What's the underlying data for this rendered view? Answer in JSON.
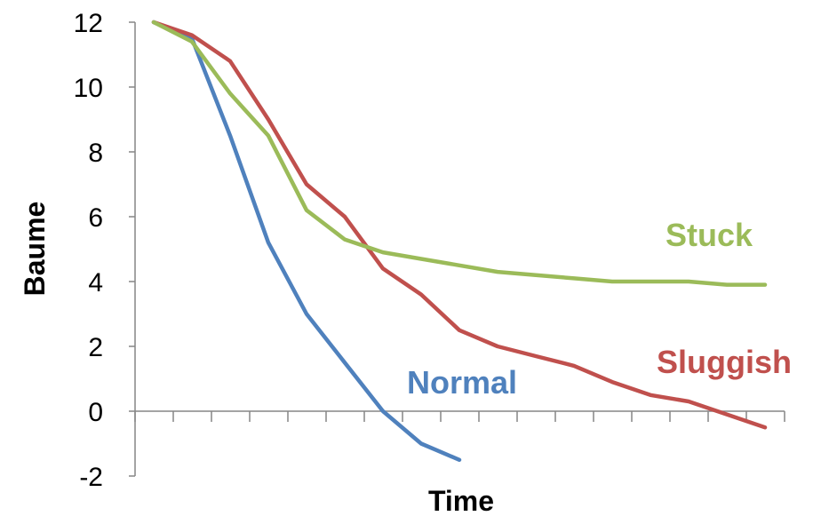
{
  "chart_data": {
    "type": "line",
    "title": "",
    "xlabel": "Time",
    "ylabel": "Baume",
    "ylim": [
      -2,
      12
    ],
    "yticks": [
      "12",
      "10",
      "8",
      "6",
      "4",
      "2",
      "0",
      "-2"
    ],
    "x_tick_count": 17,
    "grid": false,
    "legend": "inline labels",
    "series": [
      {
        "name": "Normal",
        "color": "#4F81BD",
        "x": [
          1,
          2,
          3,
          4,
          5,
          6,
          7,
          8,
          9
        ],
        "values": [
          12,
          11.5,
          8.5,
          5.2,
          3,
          1.5,
          0,
          -1,
          -1.5
        ]
      },
      {
        "name": "Sluggish",
        "color": "#C0504D",
        "x": [
          1,
          2,
          3,
          4,
          5,
          6,
          7,
          8,
          9,
          10,
          11,
          12,
          13,
          14,
          15,
          16,
          17
        ],
        "values": [
          12,
          11.6,
          10.8,
          9,
          7,
          6,
          4.4,
          3.6,
          2.5,
          2,
          1.7,
          1.4,
          0.9,
          0.5,
          0.3,
          -0.1,
          -0.5
        ]
      },
      {
        "name": "Stuck",
        "color": "#9BBB59",
        "x": [
          1,
          2,
          3,
          4,
          5,
          6,
          7,
          8,
          9,
          10,
          11,
          12,
          13,
          14,
          15,
          16,
          17
        ],
        "values": [
          12,
          11.4,
          9.8,
          8.5,
          6.2,
          5.3,
          4.9,
          4.7,
          4.5,
          4.3,
          4.2,
          4.1,
          4,
          4,
          4,
          3.9,
          3.9
        ]
      }
    ]
  }
}
